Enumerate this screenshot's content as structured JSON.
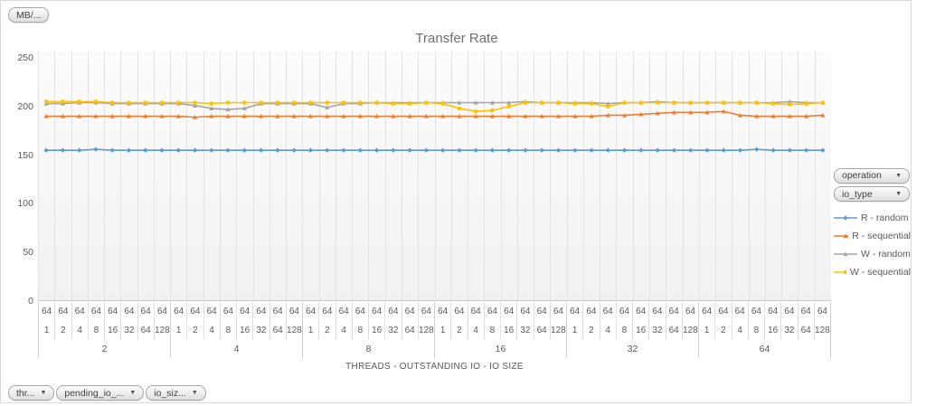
{
  "field_buttons": {
    "values": "MB/...",
    "threads": "thr...",
    "pending_io": "pending_io_...",
    "io_size": "io_siz...",
    "legend_operation": "operation",
    "legend_io_type": "io_type"
  },
  "chart_data": {
    "type": "line",
    "title": "Transfer Rate",
    "x_axis_title": "THREADS - OUTSTANDING IO - IO SIZE",
    "ylim": [
      0,
      250
    ],
    "y_ticks": [
      0,
      50,
      100,
      150,
      200,
      250
    ],
    "grid": "vertical-only",
    "legend_position": "right",
    "x_groups": [
      {
        "threads": "2",
        "io_size": "64",
        "outstanding_io": [
          "1",
          "2",
          "4",
          "8",
          "16",
          "32",
          "64",
          "128"
        ]
      },
      {
        "threads": "4",
        "io_size": "64",
        "outstanding_io": [
          "1",
          "2",
          "4",
          "8",
          "16",
          "32",
          "64",
          "128"
        ]
      },
      {
        "threads": "8",
        "io_size": "64",
        "outstanding_io": [
          "1",
          "2",
          "4",
          "8",
          "16",
          "32",
          "64",
          "128"
        ]
      },
      {
        "threads": "16",
        "io_size": "64",
        "outstanding_io": [
          "1",
          "2",
          "4",
          "8",
          "16",
          "32",
          "64",
          "128"
        ]
      },
      {
        "threads": "32",
        "io_size": "64",
        "outstanding_io": [
          "1",
          "2",
          "4",
          "8",
          "16",
          "32",
          "64",
          "128"
        ]
      },
      {
        "threads": "64",
        "io_size": "64",
        "outstanding_io": [
          "1",
          "2",
          "4",
          "8",
          "16",
          "32",
          "64",
          "128"
        ]
      }
    ],
    "series": [
      {
        "name": "R - random",
        "color": "#5B9BD5",
        "marker": "diamond",
        "values": [
          155,
          155,
          155,
          156,
          155,
          155,
          155,
          155,
          155,
          155,
          155,
          155,
          155,
          155,
          155,
          155,
          155,
          155,
          155,
          155,
          155,
          155,
          155,
          155,
          155,
          155,
          155,
          155,
          155,
          155,
          155,
          155,
          155,
          155,
          155,
          155,
          155,
          155,
          155,
          155,
          155,
          155,
          155,
          156,
          155,
          155,
          155,
          155
        ]
      },
      {
        "name": "R - sequential",
        "color": "#ED7D31",
        "marker": "triangle",
        "values": [
          190,
          190,
          190,
          190,
          190,
          190,
          190,
          190,
          190,
          189,
          190,
          190,
          190,
          190,
          190,
          190,
          190,
          190,
          190,
          190,
          190,
          190,
          190,
          190,
          190,
          190,
          190,
          190,
          190,
          190,
          190,
          190,
          190,
          190,
          191,
          191,
          192,
          193,
          194,
          194,
          194,
          195,
          191,
          190,
          190,
          190,
          190,
          191
        ]
      },
      {
        "name": "W - random",
        "color": "#A5A5A5",
        "marker": "triangle",
        "values": [
          203,
          203,
          204,
          204,
          203,
          203,
          203,
          203,
          203,
          201,
          198,
          197,
          198,
          203,
          203,
          203,
          203,
          199,
          203,
          203,
          204,
          204,
          204,
          204,
          204,
          204,
          204,
          204,
          204,
          205,
          204,
          204,
          204,
          204,
          203,
          204,
          204,
          205,
          204,
          204,
          204,
          204,
          204,
          204,
          204,
          205,
          204,
          204
        ]
      },
      {
        "name": "W - sequential",
        "color": "#FFC000",
        "marker": "circle",
        "values": [
          205,
          205,
          205,
          205,
          204,
          204,
          204,
          204,
          204,
          204,
          203,
          204,
          204,
          204,
          204,
          204,
          204,
          204,
          204,
          204,
          204,
          203,
          203,
          204,
          203,
          198,
          195,
          196,
          200,
          204,
          204,
          204,
          203,
          203,
          200,
          204,
          204,
          204,
          204,
          204,
          204,
          204,
          204,
          204,
          203,
          202,
          203,
          204
        ]
      }
    ]
  }
}
